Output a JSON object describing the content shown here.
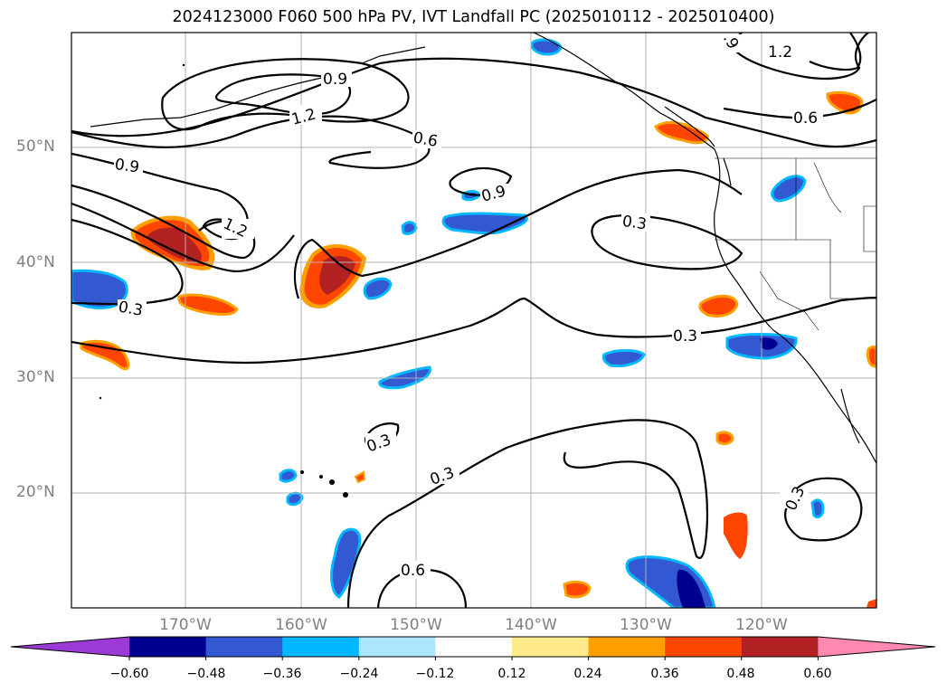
{
  "title": "2024123000 F060 500 hPa PV, IVT Landfall PC (2025010112 - 2025010400)",
  "axes": {
    "lat_labels": [
      "50°N",
      "40°N",
      "30°N",
      "20°N"
    ],
    "lon_labels": [
      "170°W",
      "160°W",
      "150°W",
      "140°W",
      "130°W",
      "120°W"
    ]
  },
  "contour_labels": [
    "0.9",
    "1.2",
    "0.6",
    "0.9",
    "0.9",
    "1.2",
    "0.3",
    "0.3",
    "0.3",
    "0.3",
    "0.3",
    "0.6",
    "0.3",
    "1.2",
    "0.6",
    ".9"
  ],
  "colorbar": {
    "tick_labels": [
      "−0.60",
      "−0.48",
      "−0.36",
      "−0.24",
      "−0.12",
      "0.12",
      "0.24",
      "0.36",
      "0.48",
      "0.60"
    ],
    "colors": [
      "#9c3ad6",
      "#000090",
      "#3258d2",
      "#00b8ff",
      "#ade4ff",
      "#ffffff",
      "#ffeb8c",
      "#ffa000",
      "#ff4600",
      "#b22222",
      "#ff89b2"
    ]
  }
}
